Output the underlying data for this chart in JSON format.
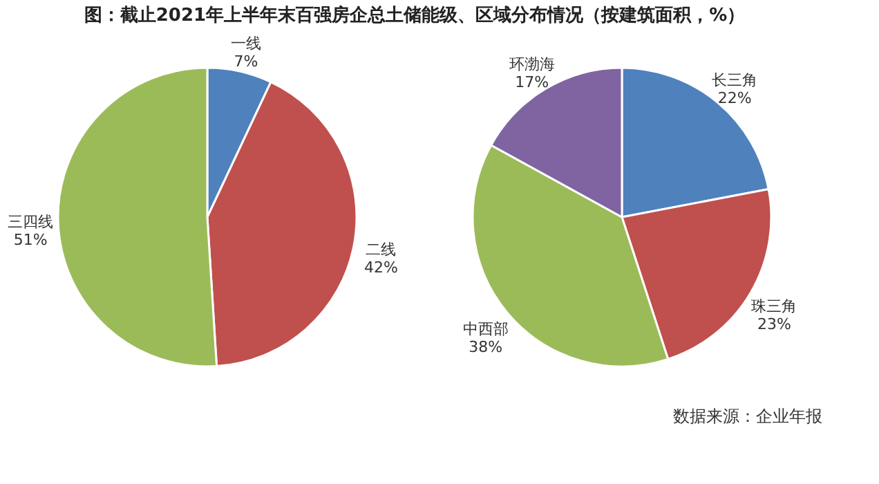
{
  "chart_data": [
    {
      "type": "pie",
      "title": "图：截止2021年上半年末百强房企总土储能级、区域分布情况（按建筑面积，%）",
      "categories": [
        "一线",
        "二线",
        "三四线"
      ],
      "values": [
        7,
        42,
        51
      ],
      "value_labels": [
        "7%",
        "42%",
        "51%"
      ],
      "colors": [
        "#4f81bd",
        "#c0504d",
        "#9bbb59"
      ],
      "legend": false
    },
    {
      "type": "pie",
      "categories": [
        "长三角",
        "珠三角",
        "中西部",
        "环渤海"
      ],
      "values": [
        22,
        23,
        38,
        17
      ],
      "value_labels": [
        "22%",
        "23%",
        "38%",
        "17%"
      ],
      "colors": [
        "#4f81bd",
        "#c0504d",
        "#9bbb59",
        "#8064a2"
      ],
      "legend": false,
      "annotations": [
        "数据来源：企业年报"
      ]
    }
  ]
}
